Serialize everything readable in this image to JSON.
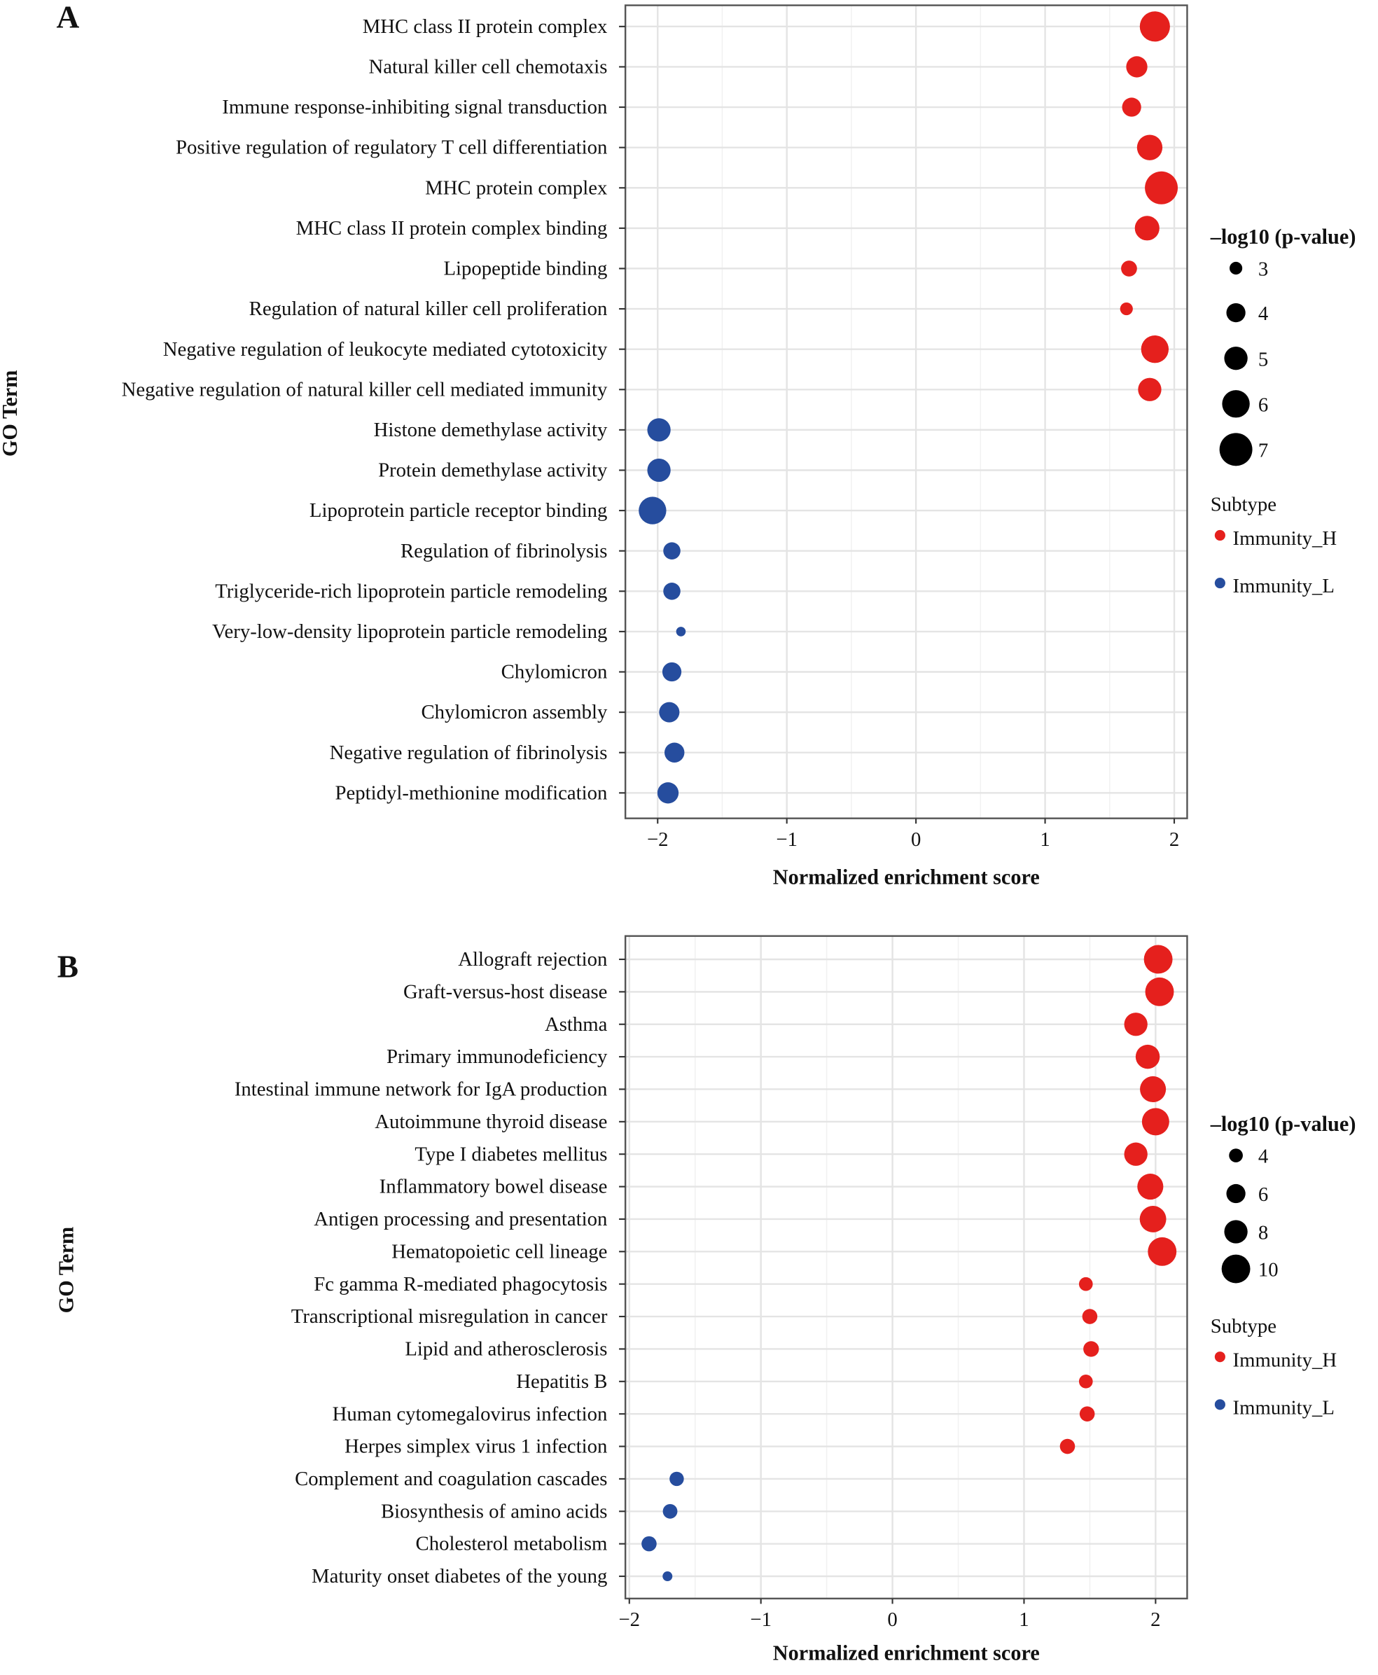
{
  "colors": {
    "Immunity_H": "#e5201d",
    "Immunity_L": "#264d9e"
  },
  "chart_data": [
    {
      "panel_label": "A",
      "type": "scatter",
      "xlabel": "Normalized enrichment score",
      "ylabel": "GO Term",
      "xlim": [
        -2.25,
        2.1
      ],
      "xticks": [
        -2,
        -1,
        0,
        1,
        2
      ],
      "xtick_labels": [
        "−2",
        "−1",
        "0",
        "1",
        "2"
      ],
      "grid": true,
      "size_legend": {
        "title": "–log10 (p-value)",
        "values": [
          3,
          4,
          5,
          6,
          7
        ],
        "labels": [
          "3",
          "4",
          "5",
          "6",
          "7"
        ]
      },
      "color_legend": {
        "title": "Subtype",
        "entries": [
          "Immunity_H",
          "Immunity_L"
        ]
      },
      "legend_position": "right",
      "points": [
        {
          "term": "MHC class II protein complex",
          "nes": 1.85,
          "neglog10p": 6.5,
          "subtype": "Immunity_H"
        },
        {
          "term": "Natural killer cell chemotaxis",
          "nes": 1.71,
          "neglog10p": 4.5,
          "subtype": "Immunity_H"
        },
        {
          "term": "Immune response-inhibiting signal transduction",
          "nes": 1.67,
          "neglog10p": 4.0,
          "subtype": "Immunity_H"
        },
        {
          "term": "Positive regulation of regulatory T cell differentiation",
          "nes": 1.81,
          "neglog10p": 5.5,
          "subtype": "Immunity_H"
        },
        {
          "term": "MHC protein complex",
          "nes": 1.9,
          "neglog10p": 7.0,
          "subtype": "Immunity_H"
        },
        {
          "term": "MHC class II protein complex binding",
          "nes": 1.79,
          "neglog10p": 5.3,
          "subtype": "Immunity_H"
        },
        {
          "term": "Lipopeptide binding",
          "nes": 1.65,
          "neglog10p": 3.5,
          "subtype": "Immunity_H"
        },
        {
          "term": "Regulation of natural killer cell proliferation",
          "nes": 1.63,
          "neglog10p": 3.0,
          "subtype": "Immunity_H"
        },
        {
          "term": "Negative regulation of leukocyte mediated cytotoxicity",
          "nes": 1.85,
          "neglog10p": 6.0,
          "subtype": "Immunity_H"
        },
        {
          "term": "Negative regulation of natural killer cell mediated immunity",
          "nes": 1.81,
          "neglog10p": 5.0,
          "subtype": "Immunity_H"
        },
        {
          "term": "Histone demethylase activity",
          "nes": -1.99,
          "neglog10p": 5.0,
          "subtype": "Immunity_L"
        },
        {
          "term": "Protein demethylase activity",
          "nes": -1.99,
          "neglog10p": 5.0,
          "subtype": "Immunity_L"
        },
        {
          "term": "Lipoprotein particle receptor binding",
          "nes": -2.04,
          "neglog10p": 6.0,
          "subtype": "Immunity_L"
        },
        {
          "term": "Regulation of fibrinolysis",
          "nes": -1.89,
          "neglog10p": 3.7,
          "subtype": "Immunity_L"
        },
        {
          "term": "Triglyceride-rich lipoprotein particle remodeling",
          "nes": -1.89,
          "neglog10p": 3.7,
          "subtype": "Immunity_L"
        },
        {
          "term": "Very-low-density lipoprotein particle remodeling",
          "nes": -1.82,
          "neglog10p": 2.5,
          "subtype": "Immunity_L"
        },
        {
          "term": "Chylomicron",
          "nes": -1.89,
          "neglog10p": 4.0,
          "subtype": "Immunity_L"
        },
        {
          "term": "Chylomicron assembly",
          "nes": -1.91,
          "neglog10p": 4.3,
          "subtype": "Immunity_L"
        },
        {
          "term": "Negative regulation of fibrinolysis",
          "nes": -1.87,
          "neglog10p": 4.2,
          "subtype": "Immunity_L"
        },
        {
          "term": "Peptidyl-methionine modification",
          "nes": -1.92,
          "neglog10p": 4.5,
          "subtype": "Immunity_L"
        }
      ]
    },
    {
      "panel_label": "B",
      "type": "scatter",
      "xlabel": "Normalized enrichment score",
      "ylabel": "GO Term",
      "xlim": [
        -2.03,
        2.24
      ],
      "xticks": [
        -2,
        -1,
        0,
        1,
        2
      ],
      "xtick_labels": [
        "−2",
        "−1",
        "0",
        "1",
        "2"
      ],
      "grid": true,
      "size_legend": {
        "title": "–log10 (p-value)",
        "values": [
          4,
          6,
          8,
          10
        ],
        "labels": [
          "4",
          "6",
          "8",
          "10"
        ]
      },
      "color_legend": {
        "title": "Subtype",
        "entries": [
          "Immunity_H",
          "Immunity_L"
        ]
      },
      "legend_position": "right",
      "points": [
        {
          "term": "Allograft rejection",
          "nes": 2.02,
          "neglog10p": 10.0,
          "subtype": "Immunity_H"
        },
        {
          "term": "Graft-versus-host disease",
          "nes": 2.03,
          "neglog10p": 10.0,
          "subtype": "Immunity_H"
        },
        {
          "term": "Asthma",
          "nes": 1.85,
          "neglog10p": 8.0,
          "subtype": "Immunity_H"
        },
        {
          "term": "Primary immunodeficiency",
          "nes": 1.94,
          "neglog10p": 8.3,
          "subtype": "Immunity_H"
        },
        {
          "term": "Intestinal immune network for IgA production",
          "nes": 1.98,
          "neglog10p": 9.0,
          "subtype": "Immunity_H"
        },
        {
          "term": "Autoimmune thyroid disease",
          "nes": 2.0,
          "neglog10p": 9.5,
          "subtype": "Immunity_H"
        },
        {
          "term": "Type I diabetes mellitus",
          "nes": 1.85,
          "neglog10p": 8.0,
          "subtype": "Immunity_H"
        },
        {
          "term": "Inflammatory bowel disease",
          "nes": 1.96,
          "neglog10p": 9.0,
          "subtype": "Immunity_H"
        },
        {
          "term": "Antigen processing and presentation",
          "nes": 1.98,
          "neglog10p": 9.2,
          "subtype": "Immunity_H"
        },
        {
          "term": "Hematopoietic cell lineage",
          "nes": 2.05,
          "neglog10p": 10.0,
          "subtype": "Immunity_H"
        },
        {
          "term": "Fc gamma R-mediated phagocytosis",
          "nes": 1.47,
          "neglog10p": 4.0,
          "subtype": "Immunity_H"
        },
        {
          "term": "Transcriptional misregulation in cancer",
          "nes": 1.5,
          "neglog10p": 4.5,
          "subtype": "Immunity_H"
        },
        {
          "term": "Lipid and atherosclerosis",
          "nes": 1.51,
          "neglog10p": 4.7,
          "subtype": "Immunity_H"
        },
        {
          "term": "Hepatitis B",
          "nes": 1.47,
          "neglog10p": 4.0,
          "subtype": "Immunity_H"
        },
        {
          "term": "Human cytomegalovirus infection",
          "nes": 1.48,
          "neglog10p": 4.5,
          "subtype": "Immunity_H"
        },
        {
          "term": "Herpes simplex virus 1 infection",
          "nes": 1.33,
          "neglog10p": 4.5,
          "subtype": "Immunity_H"
        },
        {
          "term": "Complement and coagulation cascades",
          "nes": -1.64,
          "neglog10p": 4.2,
          "subtype": "Immunity_L"
        },
        {
          "term": "Biosynthesis of amino acids",
          "nes": -1.69,
          "neglog10p": 4.3,
          "subtype": "Immunity_L"
        },
        {
          "term": "Cholesterol metabolism",
          "nes": -1.85,
          "neglog10p": 4.5,
          "subtype": "Immunity_L"
        },
        {
          "term": "Maturity onset diabetes of the young",
          "nes": -1.71,
          "neglog10p": 2.5,
          "subtype": "Immunity_L"
        }
      ]
    }
  ]
}
